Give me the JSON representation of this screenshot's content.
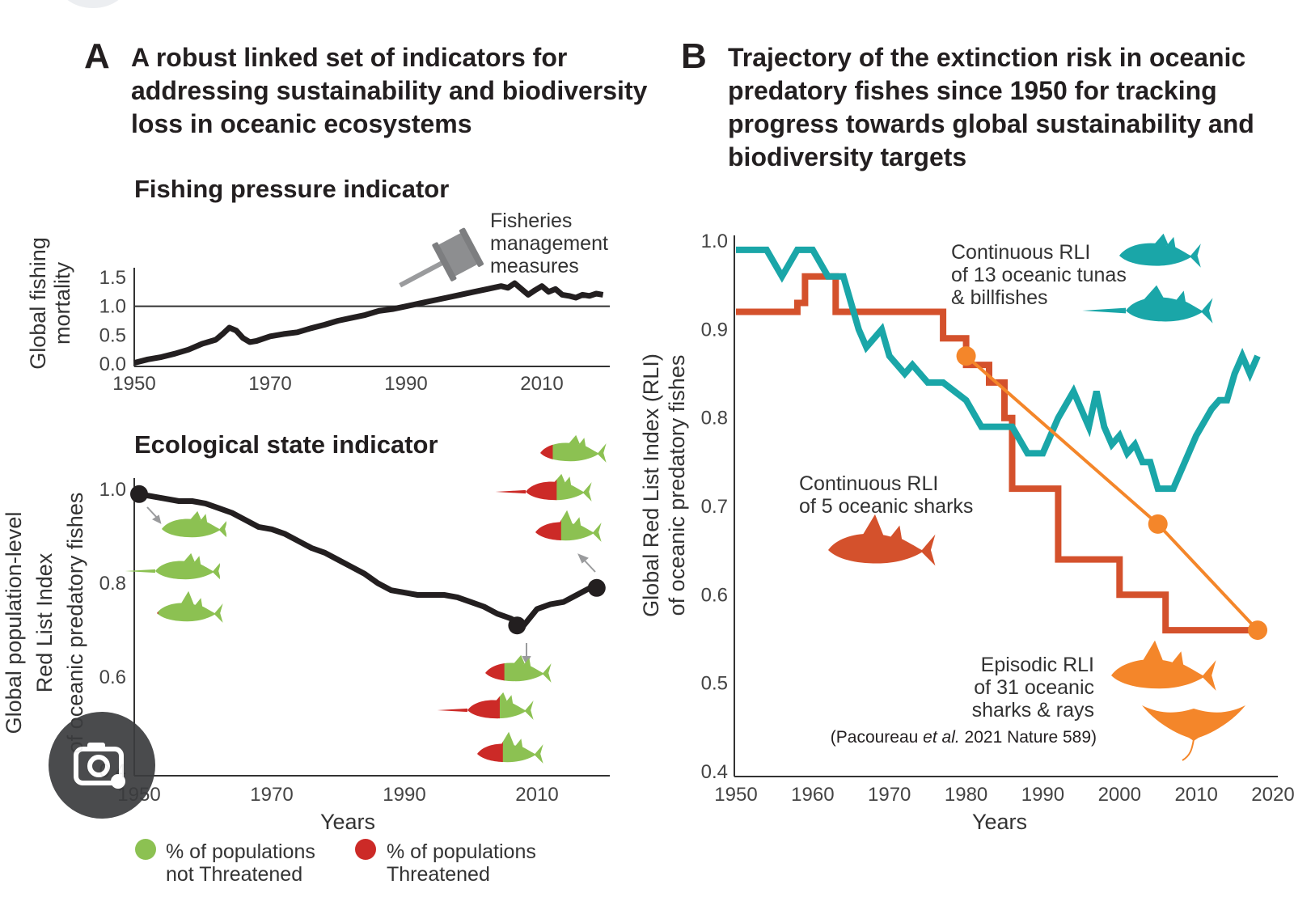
{
  "panel_a": {
    "letter": "A",
    "title_lines": [
      "A robust linked set of indicators for",
      "addressing sustainability and biodiversity",
      "loss in oceanic ecosystems"
    ]
  },
  "panel_b": {
    "letter": "B",
    "title_lines": [
      "Trajectory of the extinction risk in oceanic",
      "predatory fishes since 1950 for tracking",
      "progress towards global sustainability and",
      "biodiversity targets"
    ]
  },
  "chart_data": [
    {
      "id": "fishing-pressure",
      "type": "line",
      "title": "Fishing pressure indicator",
      "ylabel_lines": [
        "Global fishing",
        "mortality"
      ],
      "xlabel": "",
      "xlim": [
        1950,
        2020
      ],
      "ylim": [
        0,
        1.5
      ],
      "xticks": [
        "1950",
        "1970",
        "1990",
        "2010"
      ],
      "xtick_values": [
        1950,
        1970,
        1990,
        2010
      ],
      "yticks": [
        "0.0",
        "0.5",
        "1.0",
        "1.5"
      ],
      "ytick_values": [
        0,
        0.5,
        1.0,
        1.5
      ],
      "reference_line": 1.0,
      "annotation_lines": [
        "Fisheries",
        "management",
        "measures"
      ],
      "annotation_icon": "gavel-icon",
      "color": "#231f20",
      "series": [
        {
          "values_x": [
            1950,
            1952,
            1954,
            1956,
            1958,
            1960,
            1962,
            1963,
            1964,
            1965,
            1966,
            1967,
            1968,
            1970,
            1972,
            1974,
            1976,
            1978,
            1980,
            1982,
            1984,
            1986,
            1988,
            1990,
            1992,
            1994,
            1996,
            1998,
            2000,
            2002,
            2004,
            2005,
            2006,
            2007,
            2008,
            2009,
            2010,
            2011,
            2012,
            2013,
            2014,
            2015,
            2016,
            2017,
            2018,
            2019
          ],
          "values_y": [
            0.02,
            0.08,
            0.12,
            0.18,
            0.25,
            0.35,
            0.42,
            0.52,
            0.63,
            0.58,
            0.45,
            0.38,
            0.4,
            0.48,
            0.52,
            0.55,
            0.62,
            0.68,
            0.75,
            0.8,
            0.85,
            0.92,
            0.95,
            1.0,
            1.05,
            1.1,
            1.15,
            1.2,
            1.25,
            1.3,
            1.35,
            1.32,
            1.4,
            1.3,
            1.2,
            1.28,
            1.35,
            1.25,
            1.3,
            1.2,
            1.18,
            1.15,
            1.2,
            1.18,
            1.22,
            1.2
          ]
        }
      ]
    },
    {
      "id": "ecological-state",
      "type": "line",
      "title": "Ecological state indicator",
      "ylabel_lines": [
        "Global population-level",
        "Red List Index",
        "of oceanic predatory fishes"
      ],
      "xlabel": "Years",
      "xlim": [
        1950,
        2020
      ],
      "ylim": [
        0.4,
        1.0
      ],
      "xticks": [
        "1950",
        "1970",
        "1990",
        "2010"
      ],
      "xtick_values": [
        1950,
        1970,
        1990,
        2010
      ],
      "yticks": [
        "0.4",
        "0.6",
        "0.8",
        "1.0"
      ],
      "ytick_values": [
        0.4,
        0.6,
        0.8,
        1.0
      ],
      "color": "#231f20",
      "series": [
        {
          "values_x": [
            1950,
            1952,
            1954,
            1956,
            1958,
            1960,
            1962,
            1964,
            1966,
            1968,
            1970,
            1972,
            1974,
            1976,
            1978,
            1980,
            1982,
            1984,
            1986,
            1988,
            1990,
            1992,
            1994,
            1996,
            1998,
            2000,
            2002,
            2004,
            2006,
            2008,
            2010,
            2012,
            2014,
            2016,
            2018,
            2019
          ],
          "values_y": [
            0.99,
            0.985,
            0.98,
            0.975,
            0.975,
            0.97,
            0.96,
            0.95,
            0.935,
            0.92,
            0.915,
            0.905,
            0.89,
            0.875,
            0.865,
            0.85,
            0.835,
            0.82,
            0.8,
            0.785,
            0.78,
            0.775,
            0.775,
            0.775,
            0.77,
            0.76,
            0.75,
            0.735,
            0.725,
            0.71,
            0.745,
            0.755,
            0.76,
            0.775,
            0.79,
            0.795
          ]
        }
      ],
      "highlight_points_x": [
        1950,
        2007,
        2019
      ],
      "highlight_points_y": [
        0.99,
        0.71,
        0.79
      ]
    },
    {
      "id": "extinction-trajectory",
      "type": "line",
      "title": "",
      "xlabel": "Years",
      "ylabel_lines": [
        "Global Red List Index (RLI)",
        "of oceanic predatory fishes"
      ],
      "xlim": [
        1950,
        2020
      ],
      "ylim": [
        0.4,
        1.0
      ],
      "xticks": [
        "1950",
        "1960",
        "1970",
        "1980",
        "1990",
        "2000",
        "2010",
        "2020"
      ],
      "xtick_values": [
        1950,
        1960,
        1970,
        1980,
        1990,
        2000,
        2010,
        2020
      ],
      "yticks": [
        "0.4",
        "0.5",
        "0.6",
        "0.7",
        "0.8",
        "0.9",
        "1.0"
      ],
      "ytick_values": [
        0.4,
        0.5,
        0.6,
        0.7,
        0.8,
        0.9,
        1.0
      ],
      "series": [
        {
          "name": "Continuous RLI of 13 oceanic tunas & billfishes",
          "label_lines": [
            "Continuous RLI",
            "of 13 oceanic tunas",
            "& billfishes"
          ],
          "color": "#1aa6a8",
          "values_x": [
            1950,
            1954,
            1956,
            1958,
            1960,
            1962,
            1964,
            1966,
            1967,
            1969,
            1970,
            1972,
            1973,
            1975,
            1977,
            1980,
            1982,
            1984,
            1986,
            1988,
            1990,
            1992,
            1994,
            1996,
            1997,
            1998,
            1999,
            2000,
            2001,
            2002,
            2003,
            2004,
            2005,
            2007,
            2009,
            2010,
            2012,
            2013,
            2014,
            2015,
            2016,
            2017,
            2018
          ],
          "values_y": [
            0.99,
            0.99,
            0.96,
            0.99,
            0.99,
            0.96,
            0.96,
            0.9,
            0.88,
            0.9,
            0.87,
            0.85,
            0.86,
            0.84,
            0.84,
            0.82,
            0.79,
            0.79,
            0.79,
            0.76,
            0.76,
            0.8,
            0.83,
            0.79,
            0.83,
            0.79,
            0.77,
            0.78,
            0.76,
            0.77,
            0.75,
            0.75,
            0.72,
            0.72,
            0.76,
            0.78,
            0.81,
            0.82,
            0.82,
            0.85,
            0.87,
            0.85,
            0.87
          ]
        },
        {
          "name": "Continuous RLI of 5 oceanic sharks",
          "label_lines": [
            "Continuous RLI",
            "of 5 oceanic sharks"
          ],
          "color": "#d4512c",
          "values_x": [
            1950,
            1958,
            1958,
            1959,
            1959,
            1963,
            1963,
            1967,
            1967,
            1977,
            1977,
            1980,
            1980,
            1983,
            1983,
            1985,
            1985,
            1986,
            1986,
            1987,
            1987,
            1992,
            1992,
            2000,
            2000,
            2006,
            2006,
            2013,
            2013,
            2018
          ],
          "values_y": [
            0.92,
            0.92,
            0.93,
            0.93,
            0.96,
            0.96,
            0.92,
            0.92,
            0.92,
            0.92,
            0.89,
            0.89,
            0.86,
            0.86,
            0.84,
            0.84,
            0.8,
            0.8,
            0.72,
            0.72,
            0.72,
            0.72,
            0.64,
            0.64,
            0.6,
            0.6,
            0.56,
            0.56,
            0.56,
            0.56
          ]
        },
        {
          "name": "Episodic RLI of 31 oceanic sharks & rays",
          "label_lines": [
            "Episodic RLI",
            "of 31 oceanic",
            "sharks & rays"
          ],
          "color": "#f4862a",
          "values_x": [
            1980,
            2005,
            2018
          ],
          "values_y": [
            0.87,
            0.68,
            0.56
          ]
        }
      ],
      "citation": {
        "prefix": "(Pacoureau ",
        "italic": "et al.",
        "suffix": " 2021 Nature 589)"
      }
    }
  ],
  "legend": {
    "items": [
      {
        "lines": [
          "% of populations",
          "not Threatened"
        ],
        "color": "#8cc152"
      },
      {
        "lines": [
          "% of populations",
          "Threatened"
        ],
        "color": "#cc2a27"
      }
    ]
  },
  "colors": {
    "green": "#8cc152",
    "red": "#cc2a27",
    "teal": "#1aa6a8",
    "rust": "#d4512c",
    "orange": "#f4862a"
  },
  "icons": {
    "fish_shape": "fish-icon",
    "shark_shape": "shark-icon",
    "ray_shape": "ray-icon",
    "camera": "camera-search-icon"
  },
  "fish_groups": [
    {
      "id": "group-1950",
      "threatened_fraction": [
        0.0,
        0.0,
        0.03
      ]
    },
    {
      "id": "group-2007",
      "threatened_fraction": [
        0.3,
        0.5,
        0.4
      ]
    },
    {
      "id": "group-2019",
      "threatened_fraction": [
        0.2,
        0.48,
        0.4
      ]
    }
  ]
}
